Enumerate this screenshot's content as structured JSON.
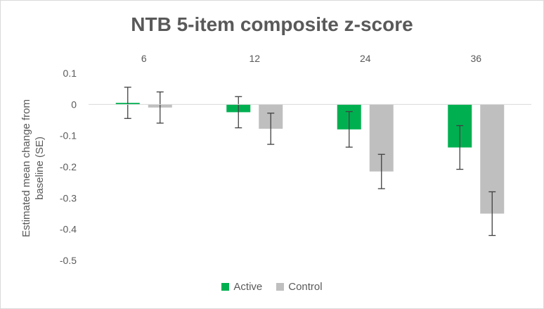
{
  "chart_data": {
    "type": "bar",
    "title": "NTB 5-item composite z-score",
    "ylabel": "Estimated mean change from baseline (SE)",
    "xlabel": "",
    "categories": [
      "6",
      "12",
      "24",
      "36"
    ],
    "ylim": [
      -0.5,
      0.1
    ],
    "yticks": [
      "0.1",
      "0",
      "-0.1",
      "-0.2",
      "-0.3",
      "-0.4",
      "-0.5"
    ],
    "gridlines": false,
    "legend_position": "bottom",
    "series": [
      {
        "name": "Active",
        "color": "#00b050",
        "values": [
          0.005,
          -0.025,
          -0.08,
          -0.138
        ],
        "err": [
          0.05,
          0.05,
          0.057,
          0.07
        ]
      },
      {
        "name": "Control",
        "color": "#bfbfbf",
        "values": [
          -0.01,
          -0.078,
          -0.215,
          -0.35
        ],
        "err": [
          0.05,
          0.05,
          0.055,
          0.07
        ]
      }
    ]
  }
}
